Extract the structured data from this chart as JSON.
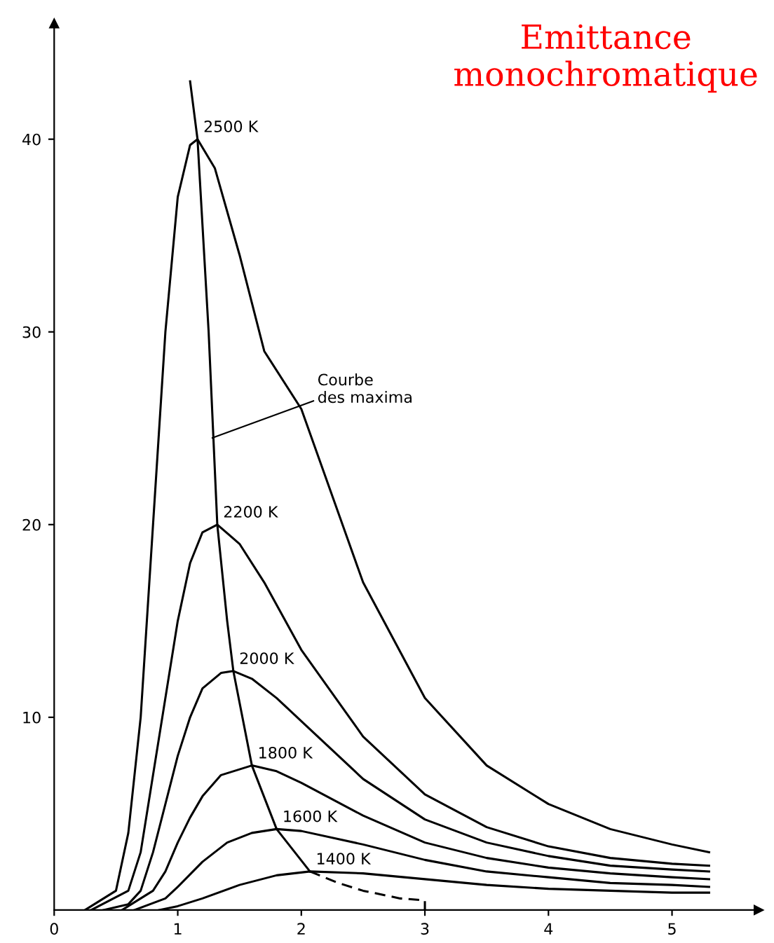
{
  "chart_data": {
    "type": "line",
    "title": "Emittance\nmonochromatique",
    "xlim": [
      0,
      5.7
    ],
    "ylim": [
      0,
      46
    ],
    "xticks": [
      0,
      1,
      2,
      3,
      4,
      5
    ],
    "yticks": [
      10,
      20,
      30,
      40
    ],
    "grid": false,
    "legend": false,
    "marker": "none",
    "series": [
      {
        "name": "2500 K",
        "color": "#000000",
        "x": [
          0.25,
          0.5,
          0.6,
          0.7,
          0.8,
          0.9,
          1.0,
          1.1,
          1.16,
          1.3,
          1.5,
          1.7,
          2.0,
          2.5,
          3.0,
          3.5,
          4.0,
          4.5,
          5.0,
          5.3
        ],
        "values": [
          0,
          1,
          4,
          10,
          20,
          30,
          37,
          39.7,
          40,
          38.5,
          34,
          29,
          26,
          17,
          11,
          7.5,
          5.5,
          4.2,
          3.4,
          3.0
        ]
      },
      {
        "name": "2200 K",
        "color": "#000000",
        "x": [
          0.3,
          0.6,
          0.7,
          0.8,
          0.9,
          1.0,
          1.1,
          1.2,
          1.32,
          1.5,
          1.7,
          2.0,
          2.5,
          3.0,
          3.5,
          4.0,
          4.5,
          5.0,
          5.3
        ],
        "values": [
          0,
          1,
          3,
          7,
          11,
          15,
          18,
          19.6,
          20,
          19,
          17,
          13.5,
          9,
          6,
          4.3,
          3.3,
          2.7,
          2.4,
          2.3
        ]
      },
      {
        "name": "2000 K",
        "color": "#000000",
        "x": [
          0.4,
          0.6,
          0.7,
          0.8,
          0.9,
          1.0,
          1.1,
          1.2,
          1.35,
          1.45,
          1.6,
          1.8,
          2.0,
          2.5,
          3.0,
          3.5,
          4.0,
          4.5,
          5.0,
          5.3
        ],
        "values": [
          0,
          0.3,
          1,
          3,
          5.5,
          8,
          10,
          11.5,
          12.3,
          12.4,
          12,
          11,
          9.8,
          6.8,
          4.7,
          3.5,
          2.8,
          2.3,
          2.1,
          2.0
        ]
      },
      {
        "name": "1800 K",
        "color": "#000000",
        "x": [
          0.55,
          0.8,
          0.9,
          1.0,
          1.1,
          1.2,
          1.35,
          1.6,
          1.8,
          2.0,
          2.5,
          3.0,
          3.5,
          4.0,
          4.5,
          5.0,
          5.3
        ],
        "values": [
          0,
          1,
          2,
          3.5,
          4.8,
          5.9,
          7,
          7.5,
          7.2,
          6.6,
          4.9,
          3.5,
          2.7,
          2.2,
          1.9,
          1.7,
          1.6
        ]
      },
      {
        "name": "1600 K",
        "color": "#000000",
        "x": [
          0.65,
          0.9,
          1.0,
          1.2,
          1.4,
          1.6,
          1.8,
          2.0,
          2.5,
          3.0,
          3.5,
          4.0,
          4.5,
          5.0,
          5.3
        ],
        "values": [
          0,
          0.6,
          1.2,
          2.5,
          3.5,
          4.0,
          4.2,
          4.1,
          3.4,
          2.6,
          2.0,
          1.7,
          1.4,
          1.3,
          1.2
        ]
      },
      {
        "name": "1400 K",
        "color": "#000000",
        "x": [
          0.85,
          1.0,
          1.2,
          1.5,
          1.8,
          2.07,
          2.5,
          3.0,
          3.5,
          4.0,
          4.5,
          5.0,
          5.3
        ],
        "values": [
          0,
          0.2,
          0.6,
          1.3,
          1.8,
          2.0,
          1.9,
          1.6,
          1.3,
          1.1,
          1.0,
          0.9,
          0.9
        ]
      },
      {
        "color": "#000000",
        "line_style": "solid",
        "x": [
          1.1,
          1.16,
          1.25,
          1.32,
          1.4,
          1.45,
          1.6,
          1.8,
          2.07
        ],
        "values": [
          43,
          40,
          30,
          20,
          15,
          12.4,
          7.5,
          4.2,
          2.0
        ]
      },
      {
        "color": "#000000",
        "line_style": "dashed",
        "x": [
          2.07,
          2.3,
          2.5,
          2.8,
          3.0,
          3.0
        ],
        "values": [
          2.0,
          1.4,
          1.0,
          0.6,
          0.5,
          0
        ]
      }
    ],
    "annotations": [
      {
        "text": "Courbe\ndes maxima",
        "x": 1.28,
        "y": 24.5
      }
    ]
  }
}
